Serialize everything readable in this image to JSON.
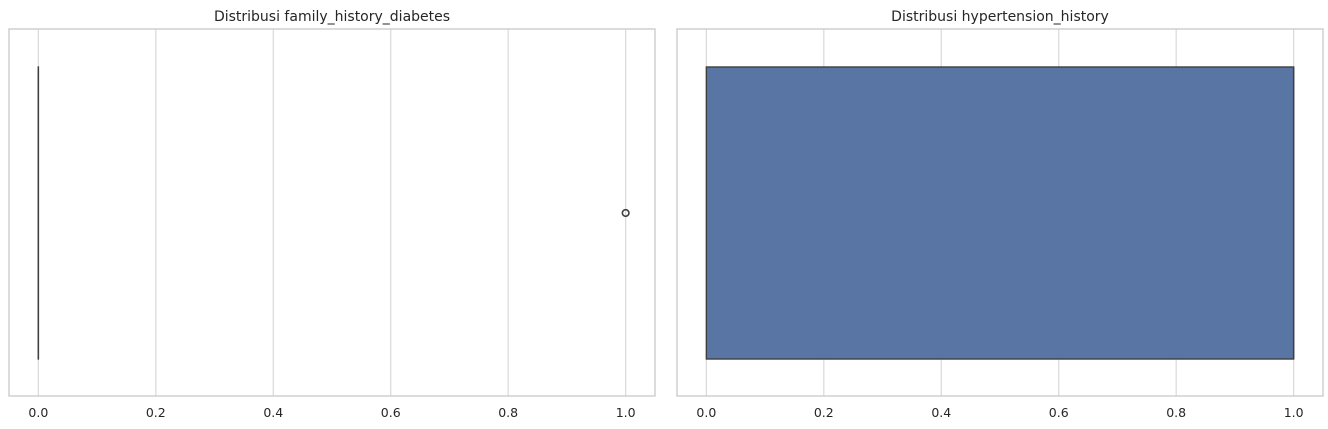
{
  "chart_data": [
    {
      "type": "boxplot",
      "title": "Distribusi family_history_diabetes",
      "xlabel": "",
      "ylabel": "",
      "xlim": [
        -0.05,
        1.05
      ],
      "xticks": [
        0.0,
        0.2,
        0.4,
        0.6,
        0.8,
        1.0
      ],
      "xtick_labels": [
        "0.0",
        "0.2",
        "0.4",
        "0.6",
        "0.8",
        "1.0"
      ],
      "grid": true,
      "box": {
        "min": 0,
        "q1": 0,
        "median": 0,
        "q3": 0,
        "max": 0
      },
      "outliers": [
        1
      ],
      "box_color": "#4c72b0"
    },
    {
      "type": "boxplot",
      "title": "Distribusi hypertension_history",
      "xlabel": "",
      "ylabel": "",
      "xlim": [
        -0.05,
        1.05
      ],
      "xticks": [
        0.0,
        0.2,
        0.4,
        0.6,
        0.8,
        1.0
      ],
      "xtick_labels": [
        "0.0",
        "0.2",
        "0.4",
        "0.6",
        "0.8",
        "1.0"
      ],
      "grid": true,
      "box": {
        "min": 0,
        "q1": 0,
        "median": 1,
        "q3": 1,
        "max": 1
      },
      "outliers": [],
      "box_color": "#5975a4"
    }
  ]
}
